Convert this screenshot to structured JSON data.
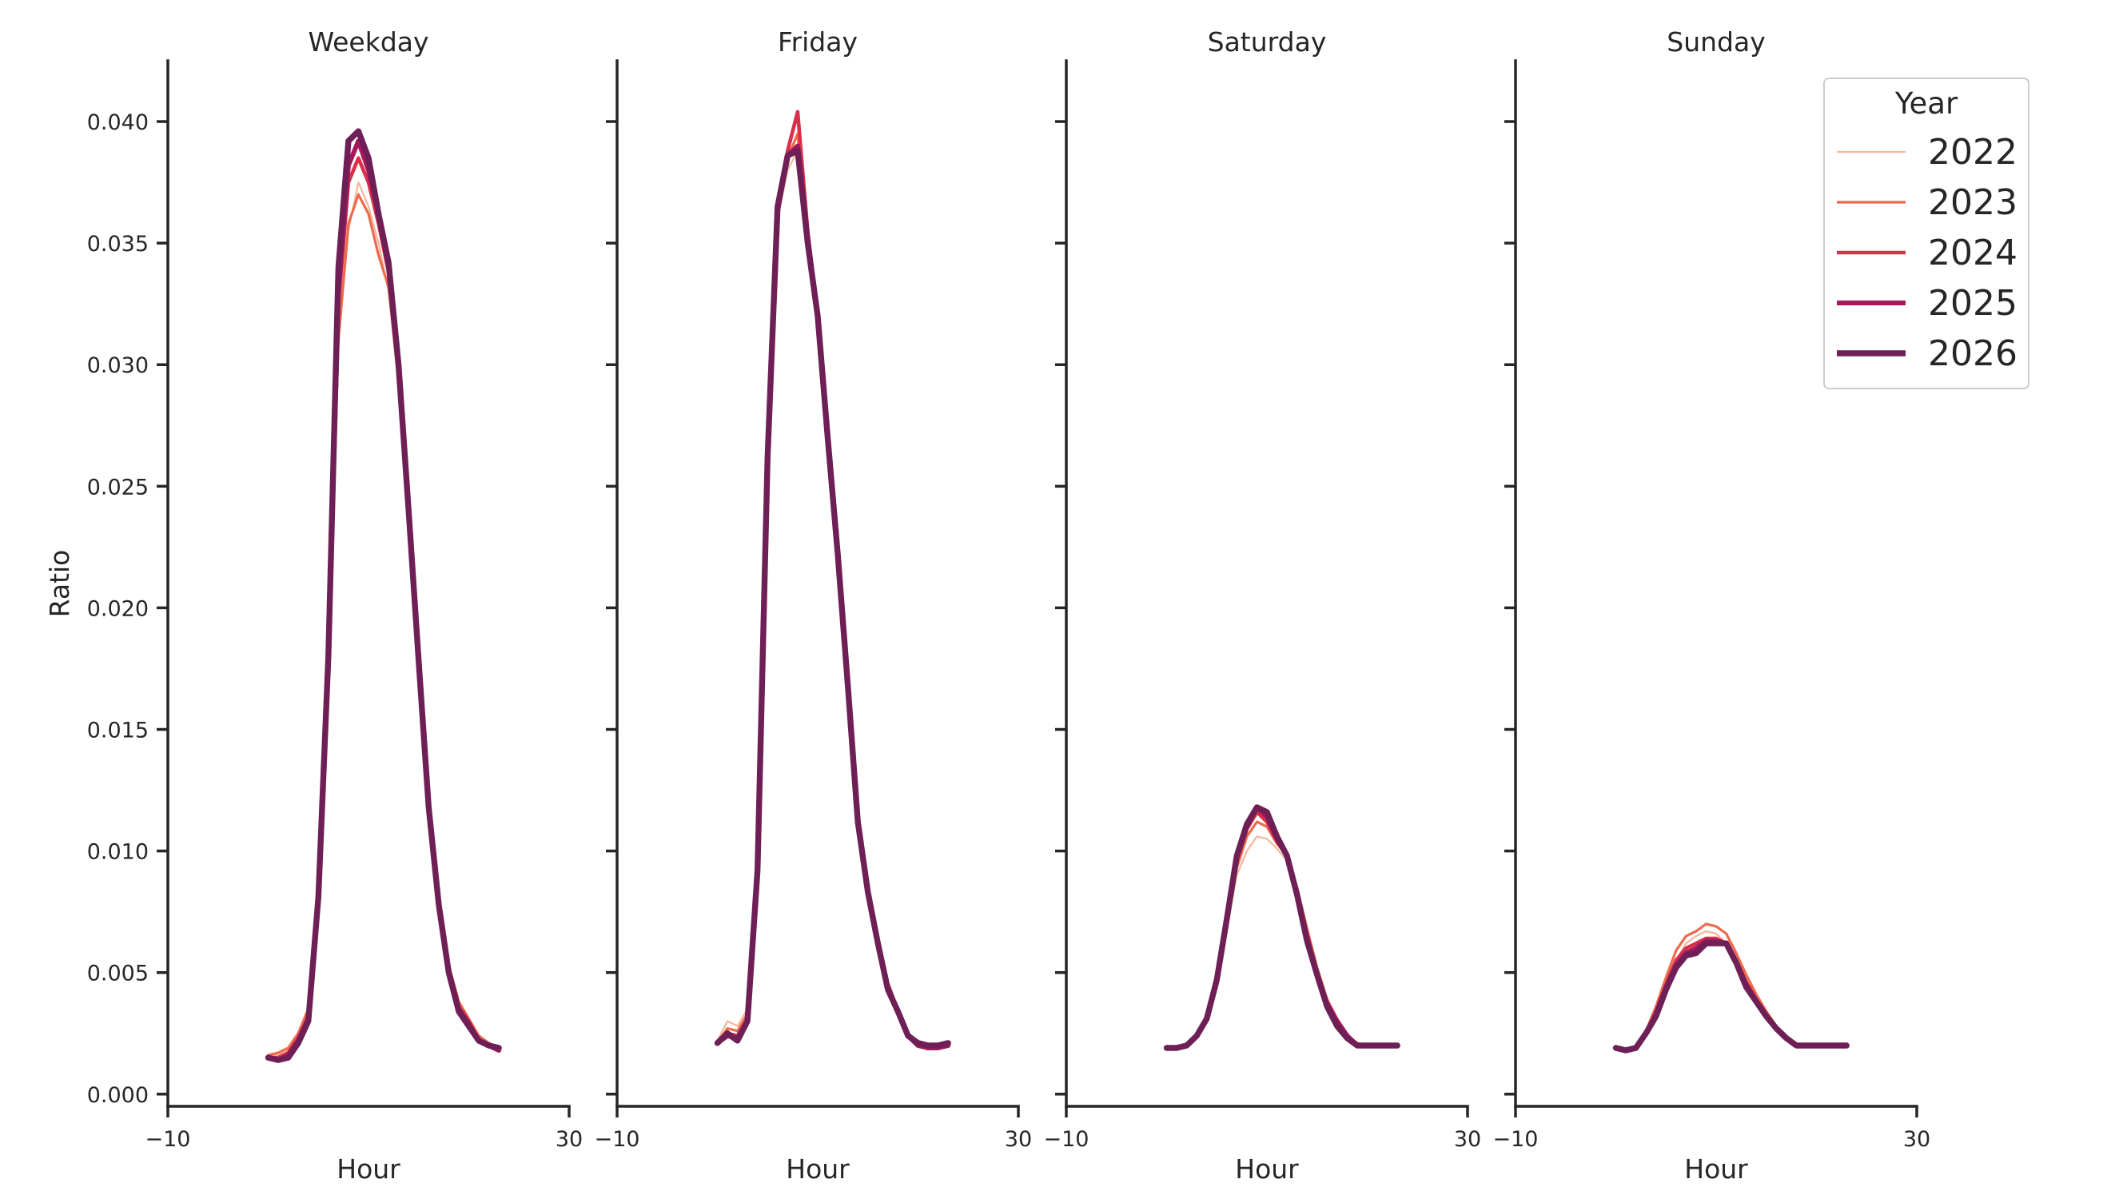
{
  "chart_data": {
    "type": "line",
    "xlabel": "Hour",
    "ylabel": "Ratio",
    "xlim": [
      -10,
      30
    ],
    "ylim": [
      -0.0005,
      0.0425
    ],
    "xticks": [
      -10,
      30
    ],
    "xtick_labels": [
      "−10",
      "30"
    ],
    "yticks": [
      0.0,
      0.005,
      0.01,
      0.015,
      0.02,
      0.025,
      0.03,
      0.035,
      0.04
    ],
    "ytick_labels": [
      "0.000",
      "0.005",
      "0.010",
      "0.015",
      "0.020",
      "0.025",
      "0.030",
      "0.035",
      "0.040"
    ],
    "grid": false,
    "legend": {
      "title": "Year",
      "placement": "top-right",
      "entries": [
        {
          "label": "2022",
          "color": "#f3b79a"
        },
        {
          "label": "2023",
          "color": "#ee6a4c"
        },
        {
          "label": "2024",
          "color": "#d8304a"
        },
        {
          "label": "2025",
          "color": "#a3195b"
        },
        {
          "label": "2026",
          "color": "#6d1f56"
        }
      ]
    },
    "x": [
      0,
      1,
      2,
      3,
      4,
      5,
      6,
      7,
      8,
      9,
      10,
      11,
      12,
      13,
      14,
      15,
      16,
      17,
      18,
      19,
      20,
      21,
      22,
      23
    ],
    "panels": [
      {
        "title": "Weekday",
        "series": [
          {
            "name": "2022",
            "values": [
              0.0016,
              0.0016,
              0.0018,
              0.0024,
              0.0034,
              0.0085,
              0.018,
              0.031,
              0.0355,
              0.0375,
              0.0365,
              0.035,
              0.033,
              0.029,
              0.023,
              0.017,
              0.0115,
              0.0078,
              0.0052,
              0.0037,
              0.003,
              0.0023,
              0.002,
              0.0018
            ]
          },
          {
            "name": "2023",
            "values": [
              0.0016,
              0.0017,
              0.0019,
              0.0025,
              0.0035,
              0.0085,
              0.018,
              0.031,
              0.0358,
              0.037,
              0.0362,
              0.0345,
              0.0332,
              0.0295,
              0.0235,
              0.0175,
              0.012,
              0.008,
              0.0053,
              0.0038,
              0.0031,
              0.0024,
              0.0021,
              0.0019
            ]
          },
          {
            "name": "2024",
            "values": [
              0.0015,
              0.0015,
              0.0017,
              0.0023,
              0.0032,
              0.0083,
              0.0178,
              0.0325,
              0.0375,
              0.0385,
              0.0375,
              0.0358,
              0.0338,
              0.0298,
              0.0238,
              0.0178,
              0.0118,
              0.0079,
              0.0052,
              0.0036,
              0.003,
              0.0022,
              0.002,
              0.0018
            ]
          },
          {
            "name": "2025",
            "values": [
              0.0015,
              0.0014,
              0.0016,
              0.0022,
              0.0031,
              0.0082,
              0.0178,
              0.033,
              0.0382,
              0.0392,
              0.038,
              0.0362,
              0.034,
              0.0298,
              0.0238,
              0.0178,
              0.0118,
              0.0078,
              0.0051,
              0.0035,
              0.0029,
              0.0022,
              0.002,
              0.0018
            ]
          },
          {
            "name": "2026",
            "values": [
              0.0015,
              0.0014,
              0.0015,
              0.0021,
              0.003,
              0.0081,
              0.018,
              0.034,
              0.0392,
              0.0396,
              0.0385,
              0.0362,
              0.0342,
              0.03,
              0.024,
              0.0178,
              0.0118,
              0.0078,
              0.005,
              0.0034,
              0.0028,
              0.0022,
              0.002,
              0.0019
            ]
          }
        ]
      },
      {
        "title": "Friday",
        "series": [
          {
            "name": "2022",
            "values": [
              0.0022,
              0.003,
              0.0028,
              0.0035,
              0.0095,
              0.026,
              0.036,
              0.038,
              0.0388,
              0.035,
              0.0322,
              0.027,
              0.0225,
              0.017,
              0.0112,
              0.0082,
              0.006,
              0.0046,
              0.0034,
              0.0024,
              0.002,
              0.0019,
              0.0019,
              0.002
            ]
          },
          {
            "name": "2023",
            "values": [
              0.0021,
              0.0027,
              0.0026,
              0.0033,
              0.0093,
              0.026,
              0.036,
              0.0385,
              0.0395,
              0.0352,
              0.032,
              0.027,
              0.0222,
              0.0168,
              0.0115,
              0.0085,
              0.0062,
              0.0046,
              0.0035,
              0.0025,
              0.002,
              0.0019,
              0.0019,
              0.002
            ]
          },
          {
            "name": "2024",
            "values": [
              0.0021,
              0.0025,
              0.0024,
              0.0031,
              0.0092,
              0.026,
              0.0362,
              0.0388,
              0.0404,
              0.0355,
              0.032,
              0.0272,
              0.0225,
              0.017,
              0.0115,
              0.0084,
              0.0062,
              0.0045,
              0.0034,
              0.0024,
              0.002,
              0.0019,
              0.0019,
              0.002
            ]
          },
          {
            "name": "2025",
            "values": [
              0.0021,
              0.0024,
              0.0023,
              0.003,
              0.0092,
              0.026,
              0.0363,
              0.0386,
              0.039,
              0.0352,
              0.032,
              0.027,
              0.0223,
              0.0168,
              0.0113,
              0.0083,
              0.0062,
              0.0044,
              0.0034,
              0.0024,
              0.002,
              0.0019,
              0.0019,
              0.002
            ]
          },
          {
            "name": "2026",
            "values": [
              0.0021,
              0.0025,
              0.0022,
              0.003,
              0.0092,
              0.0262,
              0.0365,
              0.0386,
              0.0388,
              0.035,
              0.032,
              0.027,
              0.0222,
              0.0168,
              0.0112,
              0.0083,
              0.0062,
              0.0043,
              0.0034,
              0.0024,
              0.0021,
              0.002,
              0.002,
              0.0021
            ]
          }
        ]
      },
      {
        "title": "Saturday",
        "series": [
          {
            "name": "2022",
            "values": [
              0.0019,
              0.0019,
              0.002,
              0.0024,
              0.0031,
              0.0045,
              0.0068,
              0.009,
              0.01,
              0.0106,
              0.0105,
              0.0101,
              0.0096,
              0.0082,
              0.0066,
              0.005,
              0.0038,
              0.003,
              0.0024,
              0.002,
              0.002,
              0.002,
              0.002,
              0.002
            ]
          },
          {
            "name": "2023",
            "values": [
              0.0019,
              0.0019,
              0.002,
              0.0024,
              0.0031,
              0.0046,
              0.0069,
              0.0093,
              0.0106,
              0.0112,
              0.011,
              0.0103,
              0.0098,
              0.0085,
              0.0068,
              0.0052,
              0.0039,
              0.0031,
              0.0024,
              0.0021,
              0.002,
              0.002,
              0.002,
              0.002
            ]
          },
          {
            "name": "2024",
            "values": [
              0.0019,
              0.0019,
              0.002,
              0.0024,
              0.0031,
              0.0047,
              0.0071,
              0.0096,
              0.0109,
              0.0116,
              0.0112,
              0.0104,
              0.0098,
              0.0083,
              0.0066,
              0.005,
              0.0038,
              0.003,
              0.0024,
              0.002,
              0.002,
              0.002,
              0.002,
              0.002
            ]
          },
          {
            "name": "2025",
            "values": [
              0.0019,
              0.0019,
              0.002,
              0.0024,
              0.0031,
              0.0047,
              0.0071,
              0.0097,
              0.011,
              0.0118,
              0.0114,
              0.0105,
              0.0098,
              0.0082,
              0.0064,
              0.0049,
              0.0037,
              0.003,
              0.0024,
              0.002,
              0.002,
              0.002,
              0.002,
              0.002
            ]
          },
          {
            "name": "2026",
            "values": [
              0.0019,
              0.0019,
              0.002,
              0.0024,
              0.0031,
              0.0047,
              0.0072,
              0.0098,
              0.0111,
              0.0118,
              0.0116,
              0.0106,
              0.0098,
              0.0082,
              0.0063,
              0.0049,
              0.0036,
              0.0028,
              0.0023,
              0.002,
              0.002,
              0.002,
              0.002,
              0.002
            ]
          }
        ]
      },
      {
        "title": "Sunday",
        "series": [
          {
            "name": "2022",
            "values": [
              0.0019,
              0.0018,
              0.0019,
              0.0025,
              0.0033,
              0.0044,
              0.0055,
              0.0062,
              0.0065,
              0.0067,
              0.0066,
              0.0062,
              0.0054,
              0.0046,
              0.004,
              0.0033,
              0.0028,
              0.0024,
              0.002,
              0.002,
              0.002,
              0.002,
              0.002,
              0.002
            ]
          },
          {
            "name": "2023",
            "values": [
              0.0019,
              0.0018,
              0.0019,
              0.0026,
              0.0036,
              0.0048,
              0.0059,
              0.0065,
              0.0067,
              0.007,
              0.0069,
              0.0066,
              0.0058,
              0.0049,
              0.0041,
              0.0034,
              0.0028,
              0.0024,
              0.002,
              0.002,
              0.002,
              0.002,
              0.002,
              0.002
            ]
          },
          {
            "name": "2024",
            "values": [
              0.0019,
              0.0018,
              0.0019,
              0.0025,
              0.0034,
              0.0045,
              0.0055,
              0.006,
              0.0062,
              0.0064,
              0.0064,
              0.0062,
              0.0055,
              0.0046,
              0.0039,
              0.0033,
              0.0027,
              0.0023,
              0.002,
              0.002,
              0.002,
              0.002,
              0.002,
              0.002
            ]
          },
          {
            "name": "2025",
            "values": [
              0.0019,
              0.0018,
              0.0019,
              0.0025,
              0.0033,
              0.0044,
              0.0053,
              0.0058,
              0.006,
              0.0063,
              0.0063,
              0.0062,
              0.0054,
              0.0045,
              0.0038,
              0.0032,
              0.0027,
              0.0023,
              0.002,
              0.002,
              0.002,
              0.002,
              0.002,
              0.002
            ]
          },
          {
            "name": "2026",
            "values": [
              0.0019,
              0.0018,
              0.0019,
              0.0025,
              0.0032,
              0.0043,
              0.0052,
              0.0057,
              0.0058,
              0.0062,
              0.0062,
              0.0062,
              0.0054,
              0.0044,
              0.0038,
              0.0032,
              0.0027,
              0.0023,
              0.002,
              0.002,
              0.002,
              0.002,
              0.002,
              0.002
            ]
          }
        ]
      }
    ]
  }
}
